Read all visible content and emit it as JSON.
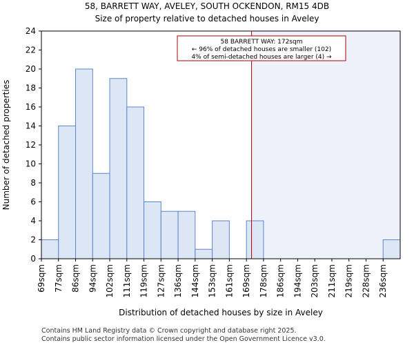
{
  "chart_data": {
    "type": "bar",
    "title": "58, BARRETT WAY, AVELEY, SOUTH OCKENDON, RM15 4DB",
    "subtitle": "Size of property relative to detached houses in Aveley",
    "xlabel": "Distribution of detached houses by size in Aveley",
    "ylabel": "Number of detached properties",
    "categories": [
      "69sqm",
      "77sqm",
      "86sqm",
      "94sqm",
      "102sqm",
      "111sqm",
      "119sqm",
      "127sqm",
      "136sqm",
      "144sqm",
      "153sqm",
      "161sqm",
      "169sqm",
      "178sqm",
      "186sqm",
      "194sqm",
      "203sqm",
      "211sqm",
      "219sqm",
      "228sqm",
      "236sqm"
    ],
    "values": [
      2,
      14,
      20,
      9,
      19,
      16,
      6,
      5,
      5,
      1,
      4,
      0,
      4,
      0,
      0,
      0,
      0,
      0,
      0,
      0,
      2
    ],
    "ylim": [
      0,
      24
    ],
    "yticks": [
      0,
      2,
      4,
      6,
      8,
      10,
      12,
      14,
      16,
      18,
      20,
      22,
      24
    ],
    "grid": false,
    "marker": {
      "value_bin_position": 12.3,
      "color": "#aa0000",
      "shaded_color": "#eef0fa"
    },
    "annotation": {
      "line1": "58 BARRETT WAY: 172sqm",
      "line2": "← 96% of detached houses are smaller (102)",
      "line3": "4% of semi-detached houses are larger (4) →"
    },
    "bar_fill": "#dde6f5",
    "bar_edge": "#5b86c9"
  },
  "footer": {
    "line1": "Contains HM Land Registry data © Crown copyright and database right 2025.",
    "line2": "Contains public sector information licensed under the Open Government Licence v3.0."
  }
}
